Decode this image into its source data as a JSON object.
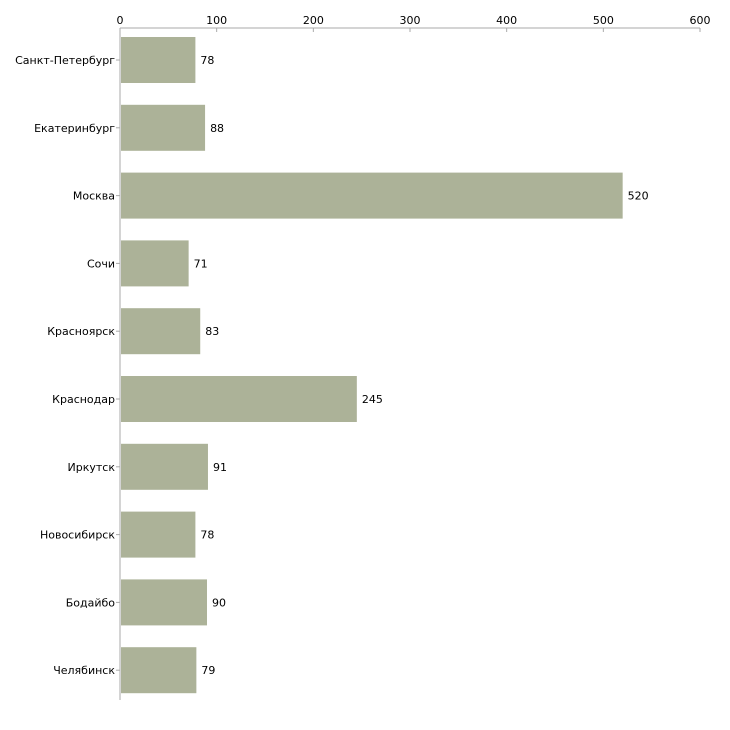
{
  "colors": {
    "bar": "#acb298",
    "axis": "#aaaaaa",
    "text": "#000000"
  },
  "chart_data": {
    "type": "bar",
    "orientation": "horizontal",
    "title": "",
    "xlabel": "",
    "ylabel": "",
    "xlim": [
      0,
      600
    ],
    "ticks": [
      0,
      100,
      200,
      300,
      400,
      500,
      600
    ],
    "grid": false,
    "categories": [
      "Санкт-Петербург",
      "Екатеринбург",
      "Москва",
      "Сочи",
      "Красноярск",
      "Краснодар",
      "Иркутск",
      "Новосибирск",
      "Бодайбо",
      "Челябинск"
    ],
    "values": [
      78,
      88,
      520,
      71,
      83,
      245,
      91,
      78,
      90,
      79
    ]
  }
}
